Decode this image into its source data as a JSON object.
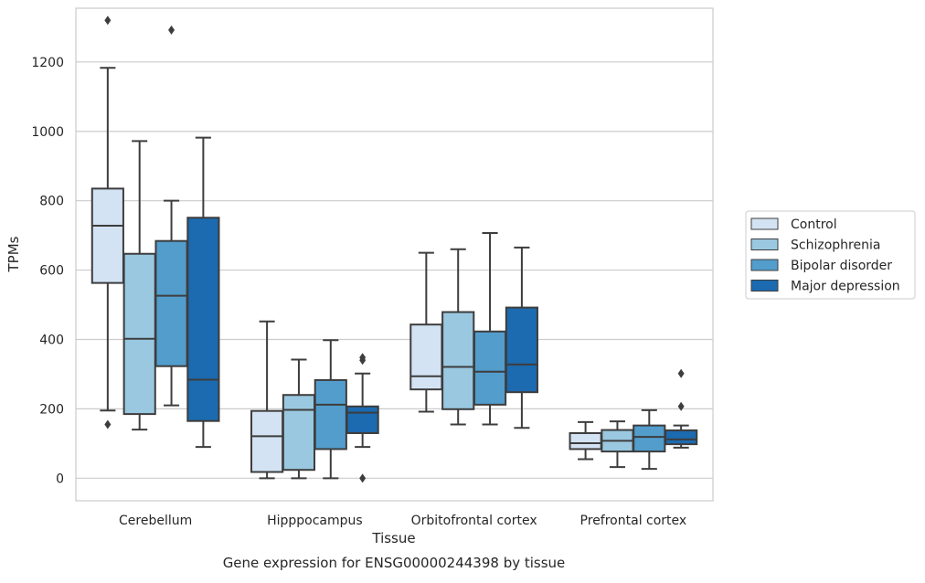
{
  "chart_data": {
    "type": "box",
    "title": "",
    "caption": "Gene expression for ENSG00000244398 by tissue",
    "xlabel": "Tissue",
    "ylabel": "TPMs",
    "ylim": [
      -65,
      1355
    ],
    "yticks": [
      0,
      200,
      400,
      600,
      800,
      1000,
      1200
    ],
    "grid": true,
    "legend_position": "right",
    "categories": [
      "Cerebellum",
      "Hipppocampus",
      "Orbitofrontal cortex",
      "Prefrontal cortex"
    ],
    "series": [
      {
        "name": "Control",
        "color": "#d3e3f3",
        "boxes": [
          {
            "whisker_low": 195,
            "q1": 563,
            "median": 728,
            "q3": 835,
            "whisker_high": 1183,
            "outliers": [
              155,
              1320
            ]
          },
          {
            "whisker_low": 0,
            "q1": 18,
            "median": 121,
            "q3": 194,
            "whisker_high": 452,
            "outliers": []
          },
          {
            "whisker_low": 192,
            "q1": 256,
            "median": 294,
            "q3": 443,
            "whisker_high": 650,
            "outliers": []
          },
          {
            "whisker_low": 55,
            "q1": 84,
            "median": 101,
            "q3": 130,
            "whisker_high": 162,
            "outliers": []
          }
        ]
      },
      {
        "name": "Schizophrenia",
        "color": "#9ac8e0",
        "boxes": [
          {
            "whisker_low": 140,
            "q1": 185,
            "median": 402,
            "q3": 647,
            "whisker_high": 972,
            "outliers": []
          },
          {
            "whisker_low": 0,
            "q1": 24,
            "median": 197,
            "q3": 240,
            "whisker_high": 342,
            "outliers": []
          },
          {
            "whisker_low": 155,
            "q1": 199,
            "median": 321,
            "q3": 479,
            "whisker_high": 660,
            "outliers": []
          },
          {
            "whisker_low": 32,
            "q1": 77,
            "median": 108,
            "q3": 139,
            "whisker_high": 164,
            "outliers": []
          }
        ]
      },
      {
        "name": "Bipolar disorder",
        "color": "#529dcc",
        "boxes": [
          {
            "whisker_low": 210,
            "q1": 323,
            "median": 526,
            "q3": 684,
            "whisker_high": 800,
            "outliers": [
              1292
            ]
          },
          {
            "whisker_low": 0,
            "q1": 84,
            "median": 212,
            "q3": 283,
            "whisker_high": 398,
            "outliers": []
          },
          {
            "whisker_low": 155,
            "q1": 212,
            "median": 307,
            "q3": 423,
            "whisker_high": 707,
            "outliers": []
          },
          {
            "whisker_low": 27,
            "q1": 77,
            "median": 119,
            "q3": 152,
            "whisker_high": 196,
            "outliers": []
          }
        ]
      },
      {
        "name": "Major depression",
        "color": "#1c6aaf",
        "boxes": [
          {
            "whisker_low": 90,
            "q1": 165,
            "median": 284,
            "q3": 751,
            "whisker_high": 982,
            "outliers": []
          },
          {
            "whisker_low": 90,
            "q1": 130,
            "median": 189,
            "q3": 207,
            "whisker_high": 302,
            "outliers": [
              0,
              340,
              348
            ]
          },
          {
            "whisker_low": 145,
            "q1": 248,
            "median": 328,
            "q3": 492,
            "whisker_high": 665,
            "outliers": []
          },
          {
            "whisker_low": 88,
            "q1": 98,
            "median": 112,
            "q3": 138,
            "whisker_high": 152,
            "outliers": [
              207,
              302
            ]
          }
        ]
      }
    ]
  }
}
